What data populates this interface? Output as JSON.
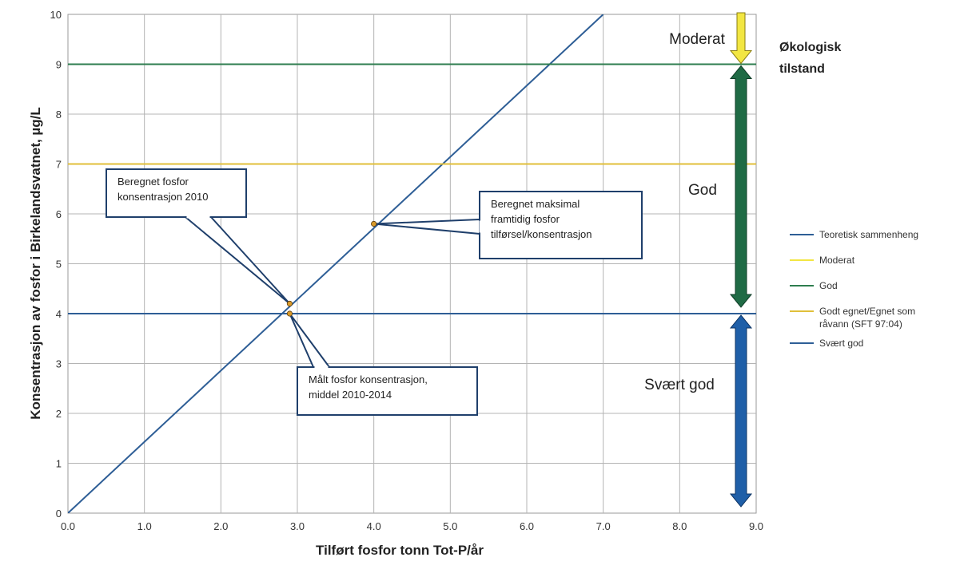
{
  "chart_data": {
    "type": "line",
    "xlabel": "Tilført fosfor tonn Tot-P/år",
    "ylabel": "Konsentrasjon av fosfor i Birkelandsvatnet, µg/L",
    "xlim": [
      0,
      9
    ],
    "ylim": [
      0,
      10
    ],
    "x_ticks": [
      "0.0",
      "1.0",
      "2.0",
      "3.0",
      "4.0",
      "5.0",
      "6.0",
      "7.0",
      "8.0",
      "9.0"
    ],
    "y_ticks": [
      "0",
      "1",
      "2",
      "3",
      "4",
      "5",
      "6",
      "7",
      "8",
      "9",
      "10"
    ],
    "grid": true,
    "legend_position": "right",
    "series": [
      {
        "name": "Teoretisk sammenheng",
        "color": "#2e5e96",
        "x": [
          0,
          7.0
        ],
        "y": [
          0,
          10
        ]
      },
      {
        "name": "Moderat",
        "color": "#f2e642",
        "x": [],
        "y": []
      },
      {
        "name": "God",
        "color": "#2e7d4f",
        "x": [
          0,
          9.0
        ],
        "y": [
          9,
          9
        ]
      },
      {
        "name": "Godt egnet/Egnet som råvann (SFT 97:04)",
        "color": "#e0bf3a",
        "x": [
          0,
          9.0
        ],
        "y": [
          7,
          7
        ]
      },
      {
        "name": "Svært god",
        "color": "#2e5e96",
        "x": [
          0,
          9.0
        ],
        "y": [
          4,
          4
        ]
      }
    ],
    "points": [
      {
        "x": 2.9,
        "y": 4.2,
        "color": "#d99a2b"
      },
      {
        "x": 2.9,
        "y": 4.0,
        "color": "#d99a2b"
      },
      {
        "x": 4.0,
        "y": 5.8,
        "color": "#d99a2b"
      }
    ],
    "annotations": [
      {
        "lines": [
          "Beregnet fosfor",
          "konsentrasjon 2010"
        ],
        "target": [
          2.9,
          4.2
        ]
      },
      {
        "lines": [
          "Beregnet maksimal",
          "framtidig fosfor",
          "tilførsel/konsentrasjon"
        ],
        "target": [
          4.0,
          5.8
        ]
      },
      {
        "lines": [
          "Målt fosfor konsentrasjon,",
          "middel 2010-2014"
        ],
        "target": [
          2.9,
          4.0
        ]
      }
    ],
    "zones": [
      {
        "label": "Moderat",
        "from": 9,
        "to": 10,
        "color": "#f2e642"
      },
      {
        "label": "God",
        "from": 4,
        "to": 9,
        "color": "#1f6b45"
      },
      {
        "label": "Svært god",
        "from": 0,
        "to": 4,
        "color": "#1f5fa8"
      }
    ],
    "side_title": [
      "Økologisk",
      "tilstand"
    ]
  }
}
